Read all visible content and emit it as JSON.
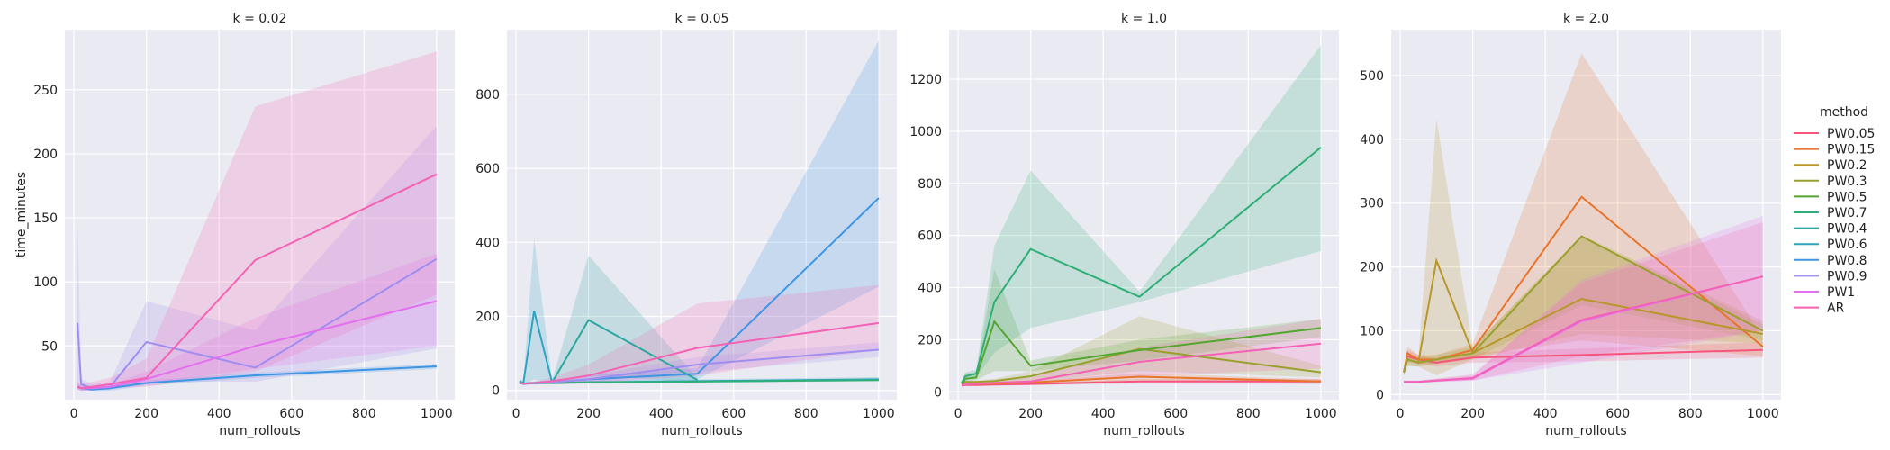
{
  "chart_data": {
    "type": "line",
    "subtype": "faceted line chart with confidence bands",
    "xlabel": "num_rollouts",
    "ylabel": "time_minutes",
    "legend": {
      "title": "method",
      "placement": "right"
    },
    "grid": true,
    "series_defs": [
      {
        "name": "PW0.05",
        "color": "#f6557b"
      },
      {
        "name": "PW0.15",
        "color": "#e8752b"
      },
      {
        "name": "PW0.2",
        "color": "#b8962a"
      },
      {
        "name": "PW0.3",
        "color": "#99a02e"
      },
      {
        "name": "PW0.5",
        "color": "#55a532"
      },
      {
        "name": "PW0.7",
        "color": "#2fae77"
      },
      {
        "name": "PW0.4",
        "color": "#2ba6a0"
      },
      {
        "name": "PW0.6",
        "color": "#2fa4c2"
      },
      {
        "name": "PW0.8",
        "color": "#3d95e4"
      },
      {
        "name": "PW0.9",
        "color": "#9f8ef0"
      },
      {
        "name": "PW1",
        "color": "#e46ef0"
      },
      {
        "name": "AR",
        "color": "#f462b4"
      }
    ],
    "panels": [
      {
        "title": "k = 0.02",
        "xlim": [
          -25,
          1050
        ],
        "ylim": [
          8,
          297
        ],
        "xticks": [
          0,
          200,
          400,
          600,
          800,
          1000
        ],
        "yticks": [
          50,
          100,
          150,
          200,
          250
        ],
        "series": [
          {
            "name": "PW0.8",
            "x": [
              10,
              20,
              50,
              100,
              200,
              500,
              1000
            ],
            "y": [
              18,
              17,
              16,
              17,
              21,
              27,
              34
            ],
            "lo": [
              16,
              15,
              15,
              15,
              19,
              25,
              32
            ],
            "hi": [
              20,
              19,
              18,
              19,
              23,
              29,
              36
            ]
          },
          {
            "name": "PW0.9",
            "x": [
              10,
              20,
              50,
              100,
              200,
              500,
              1000
            ],
            "y": [
              68,
              20,
              17,
              18,
              53,
              33,
              118
            ],
            "lo": [
              18,
              16,
              15,
              16,
              22,
              22,
              48
            ],
            "hi": [
              148,
              24,
              20,
              22,
              85,
              62,
              222
            ]
          },
          {
            "name": "PW1",
            "x": [
              10,
              20,
              50,
              100,
              200,
              500,
              1000
            ],
            "y": [
              18,
              17,
              17,
              18,
              24,
              50,
              85
            ],
            "lo": [
              16,
              15,
              15,
              16,
              20,
              32,
              50
            ],
            "hi": [
              20,
              19,
              19,
              20,
              30,
              72,
              122
            ]
          },
          {
            "name": "AR",
            "x": [
              10,
              20,
              50,
              100,
              200,
              500,
              1000
            ],
            "y": [
              18,
              17,
              18,
              20,
              25,
              117,
              184
            ],
            "lo": [
              16,
              15,
              16,
              17,
              18,
              30,
              90
            ],
            "hi": [
              22,
              21,
              22,
              25,
              40,
              237,
              280
            ]
          }
        ]
      },
      {
        "title": "k = 0.05",
        "xlim": [
          -25,
          1050
        ],
        "ylim": [
          -25,
          975
        ],
        "xticks": [
          0,
          200,
          400,
          600,
          800,
          1000
        ],
        "yticks": [
          0,
          200,
          400,
          600,
          800
        ],
        "series": [
          {
            "name": "PW0.4",
            "x": [
              10,
              20,
              50,
              100,
              200,
              500
            ],
            "y": [
              26,
              18,
              20,
              22,
              190,
              28
            ],
            "lo": [
              20,
              15,
              16,
              18,
              40,
              22
            ],
            "hi": [
              34,
              22,
              24,
              28,
              365,
              34
            ]
          },
          {
            "name": "PW0.6",
            "x": [
              10,
              20,
              50,
              100,
              200,
              500,
              1000
            ],
            "y": [
              24,
              18,
              215,
              20,
              22,
              25,
              30
            ],
            "lo": [
              18,
              15,
              30,
              16,
              18,
              20,
              25
            ],
            "hi": [
              30,
              22,
              410,
              24,
              26,
              30,
              36
            ]
          },
          {
            "name": "PW0.7",
            "x": [
              10,
              20,
              50,
              100,
              200,
              500,
              1000
            ],
            "y": [
              20,
              18,
              19,
              20,
              22,
              24,
              28
            ],
            "lo": [
              18,
              16,
              17,
              18,
              20,
              22,
              25
            ],
            "hi": [
              22,
              20,
              21,
              22,
              24,
              27,
              31
            ]
          },
          {
            "name": "PW0.8",
            "x": [
              10,
              20,
              50,
              100,
              200,
              500,
              1000
            ],
            "y": [
              20,
              18,
              20,
              22,
              30,
              45,
              520
            ],
            "lo": [
              18,
              16,
              17,
              18,
              22,
              30,
              280
            ],
            "hi": [
              22,
              20,
              24,
              26,
              40,
              60,
              945
            ]
          },
          {
            "name": "PW0.9",
            "x": [
              10,
              20,
              50,
              100,
              200,
              500,
              1000
            ],
            "y": [
              20,
              18,
              19,
              22,
              30,
              70,
              110
            ],
            "lo": [
              18,
              16,
              17,
              18,
              22,
              50,
              90
            ],
            "hi": [
              22,
              20,
              22,
              26,
              40,
              90,
              130
            ]
          },
          {
            "name": "AR",
            "x": [
              10,
              20,
              50,
              100,
              200,
              500,
              1000
            ],
            "y": [
              20,
              18,
              20,
              25,
              40,
              115,
              182
            ],
            "lo": [
              18,
              16,
              17,
              18,
              20,
              40,
              110
            ],
            "hi": [
              22,
              21,
              24,
              35,
              70,
              235,
              285
            ]
          }
        ]
      },
      {
        "title": "k = 1.0",
        "xlim": [
          -25,
          1050
        ],
        "ylim": [
          -30,
          1390
        ],
        "xticks": [
          0,
          200,
          400,
          600,
          800,
          1000
        ],
        "yticks": [
          0,
          200,
          400,
          600,
          800,
          1000,
          1200
        ],
        "series": [
          {
            "name": "PW0.05",
            "x": [
              10,
              20,
              50,
              100,
              200,
              500,
              1000
            ],
            "y": [
              25,
              26,
              26,
              28,
              30,
              40,
              40
            ],
            "lo": [
              20,
              22,
              22,
              24,
              26,
              32,
              30
            ],
            "hi": [
              30,
              30,
              30,
              32,
              34,
              48,
              50
            ]
          },
          {
            "name": "PW0.15",
            "x": [
              10,
              20,
              50,
              100,
              200,
              500,
              1000
            ],
            "y": [
              28,
              28,
              30,
              32,
              36,
              58,
              40
            ],
            "lo": [
              24,
              24,
              26,
              27,
              30,
              45,
              32
            ],
            "hi": [
              32,
              32,
              34,
              37,
              42,
              72,
              48
            ]
          },
          {
            "name": "PW0.3",
            "x": [
              10,
              20,
              50,
              100,
              200,
              500,
              1000
            ],
            "y": [
              35,
              38,
              38,
              42,
              60,
              165,
              75
            ],
            "lo": [
              30,
              32,
              32,
              35,
              40,
              80,
              55
            ],
            "hi": [
              40,
              44,
              44,
              50,
              80,
              290,
              100
            ]
          },
          {
            "name": "PW0.5",
            "x": [
              10,
              20,
              50,
              100,
              200,
              500,
              1000
            ],
            "y": [
              30,
              50,
              55,
              270,
              100,
              160,
              245
            ],
            "lo": [
              25,
              40,
              45,
              80,
              80,
              120,
              210
            ],
            "hi": [
              35,
              70,
              75,
              470,
              120,
              200,
              280
            ]
          },
          {
            "name": "PW0.7",
            "x": [
              10,
              20,
              50,
              100,
              200,
              500,
              1000
            ],
            "y": [
              35,
              60,
              70,
              345,
              548,
              365,
              938
            ],
            "lo": [
              30,
              45,
              55,
              150,
              245,
              345,
              540
            ],
            "hi": [
              40,
              75,
              85,
              560,
              850,
              385,
              1330
            ]
          },
          {
            "name": "AR",
            "x": [
              10,
              20,
              50,
              100,
              200,
              500,
              1000
            ],
            "y": [
              25,
              28,
              30,
              35,
              40,
              115,
              185
            ],
            "lo": [
              20,
              22,
              24,
              28,
              30,
              60,
              90
            ],
            "hi": [
              30,
              34,
              36,
              42,
              55,
              170,
              280
            ]
          }
        ]
      },
      {
        "title": "k = 2.0",
        "xlim": [
          -25,
          1050
        ],
        "ylim": [
          -8,
          572
        ],
        "xticks": [
          0,
          200,
          400,
          600,
          800,
          1000
        ],
        "yticks": [
          0,
          100,
          200,
          300,
          400,
          500
        ],
        "series": [
          {
            "name": "PW0.05",
            "x": [
              10,
              20,
              50,
              100,
              200,
              500,
              1000
            ],
            "y": [
              35,
              60,
              55,
              50,
              58,
              62,
              70
            ],
            "lo": [
              30,
              50,
              48,
              44,
              50,
              52,
              58
            ],
            "hi": [
              40,
              70,
              62,
              56,
              66,
              72,
              82
            ]
          },
          {
            "name": "PW0.15",
            "x": [
              10,
              20,
              50,
              100,
              200,
              500,
              1000
            ],
            "y": [
              35,
              65,
              55,
              55,
              70,
              310,
              75
            ],
            "lo": [
              30,
              55,
              48,
              48,
              60,
              85,
              60
            ],
            "hi": [
              40,
              75,
              62,
              62,
              80,
              535,
              90
            ]
          },
          {
            "name": "PW0.2",
            "x": [
              10,
              20,
              50,
              100,
              200,
              500,
              1000
            ],
            "y": [
              35,
              55,
              50,
              210,
              65,
              150,
              95
            ],
            "lo": [
              30,
              45,
              44,
              30,
              55,
              95,
              80
            ],
            "hi": [
              40,
              65,
              58,
              432,
              75,
              248,
              110
            ]
          },
          {
            "name": "PW0.3",
            "x": [
              10,
              20,
              50,
              100,
              200,
              500,
              1000
            ],
            "y": [
              35,
              55,
              50,
              55,
              65,
              248,
              100
            ],
            "lo": [
              30,
              45,
              44,
              48,
              55,
              140,
              85
            ],
            "hi": [
              40,
              65,
              58,
              62,
              75,
              250,
              115
            ]
          },
          {
            "name": "PW1",
            "x": [
              10,
              20,
              50,
              100,
              200,
              500,
              1000
            ],
            "y": [
              20,
              20,
              20,
              22,
              25,
              115,
              185
            ],
            "lo": [
              18,
              18,
              18,
              20,
              22,
              50,
              100
            ],
            "hi": [
              22,
              22,
              22,
              25,
              30,
              180,
              280
            ]
          },
          {
            "name": "AR",
            "x": [
              10,
              20,
              50,
              100,
              200,
              500,
              1000
            ],
            "y": [
              20,
              20,
              20,
              22,
              26,
              117,
              185
            ],
            "lo": [
              18,
              18,
              18,
              20,
              22,
              60,
              100
            ],
            "hi": [
              22,
              22,
              22,
              25,
              32,
              175,
              270
            ]
          }
        ]
      }
    ]
  }
}
